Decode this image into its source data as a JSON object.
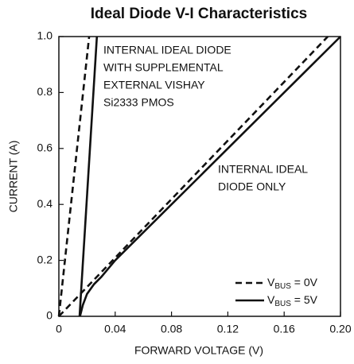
{
  "chart_data": {
    "type": "line",
    "title": "Ideal Diode V-I Characteristics",
    "x_label": "FORWARD VOLTAGE (V)",
    "y_label": "CURRENT (A)",
    "xlim": [
      0,
      0.2
    ],
    "ylim": [
      0,
      1.0
    ],
    "xticks": [
      0,
      0.04,
      0.08,
      0.12,
      0.16,
      {
        "value": 0.2,
        "label": "0.20"
      }
    ],
    "yticks": [
      0,
      0.2,
      0.4,
      0.6,
      0.8,
      {
        "value": 1.0,
        "label": "1.0"
      }
    ],
    "grid": false,
    "series": [
      {
        "style": "dashed",
        "color": "#111111",
        "x": [
          0,
          0.0215
        ],
        "values": [
          0,
          1.0
        ]
      },
      {
        "style": "solid",
        "color": "#111111",
        "x": [
          0.0147,
          0.027
        ],
        "values": [
          0,
          1.0
        ]
      },
      {
        "style": "dashed",
        "color": "#111111",
        "x": [
          0,
          0.191
        ],
        "values": [
          0,
          1.0
        ]
      },
      {
        "style": "solid",
        "color": "#111111",
        "x": [
          0.015,
          0.017,
          0.02,
          0.025,
          0.03,
          0.04,
          0.2
        ],
        "values": [
          0,
          0.04,
          0.08,
          0.115,
          0.14,
          0.2,
          1.0
        ]
      }
    ],
    "legend": {
      "position": "lower right",
      "entries": [
        {
          "style": "dashed",
          "main": "V",
          "sub": "BUS",
          "rest": " = 0V"
        },
        {
          "style": "solid",
          "main": "V",
          "sub": "BUS",
          "rest": " = 5V"
        }
      ]
    },
    "annotations": [
      {
        "lines": [
          "INTERNAL IDEAL DIODE",
          "WITH SUPPLEMENTAL",
          "EXTERNAL VISHAY",
          "Si2333 PMOS"
        ]
      },
      {
        "lines": [
          "INTERNAL IDEAL",
          "DIODE ONLY"
        ]
      }
    ]
  }
}
